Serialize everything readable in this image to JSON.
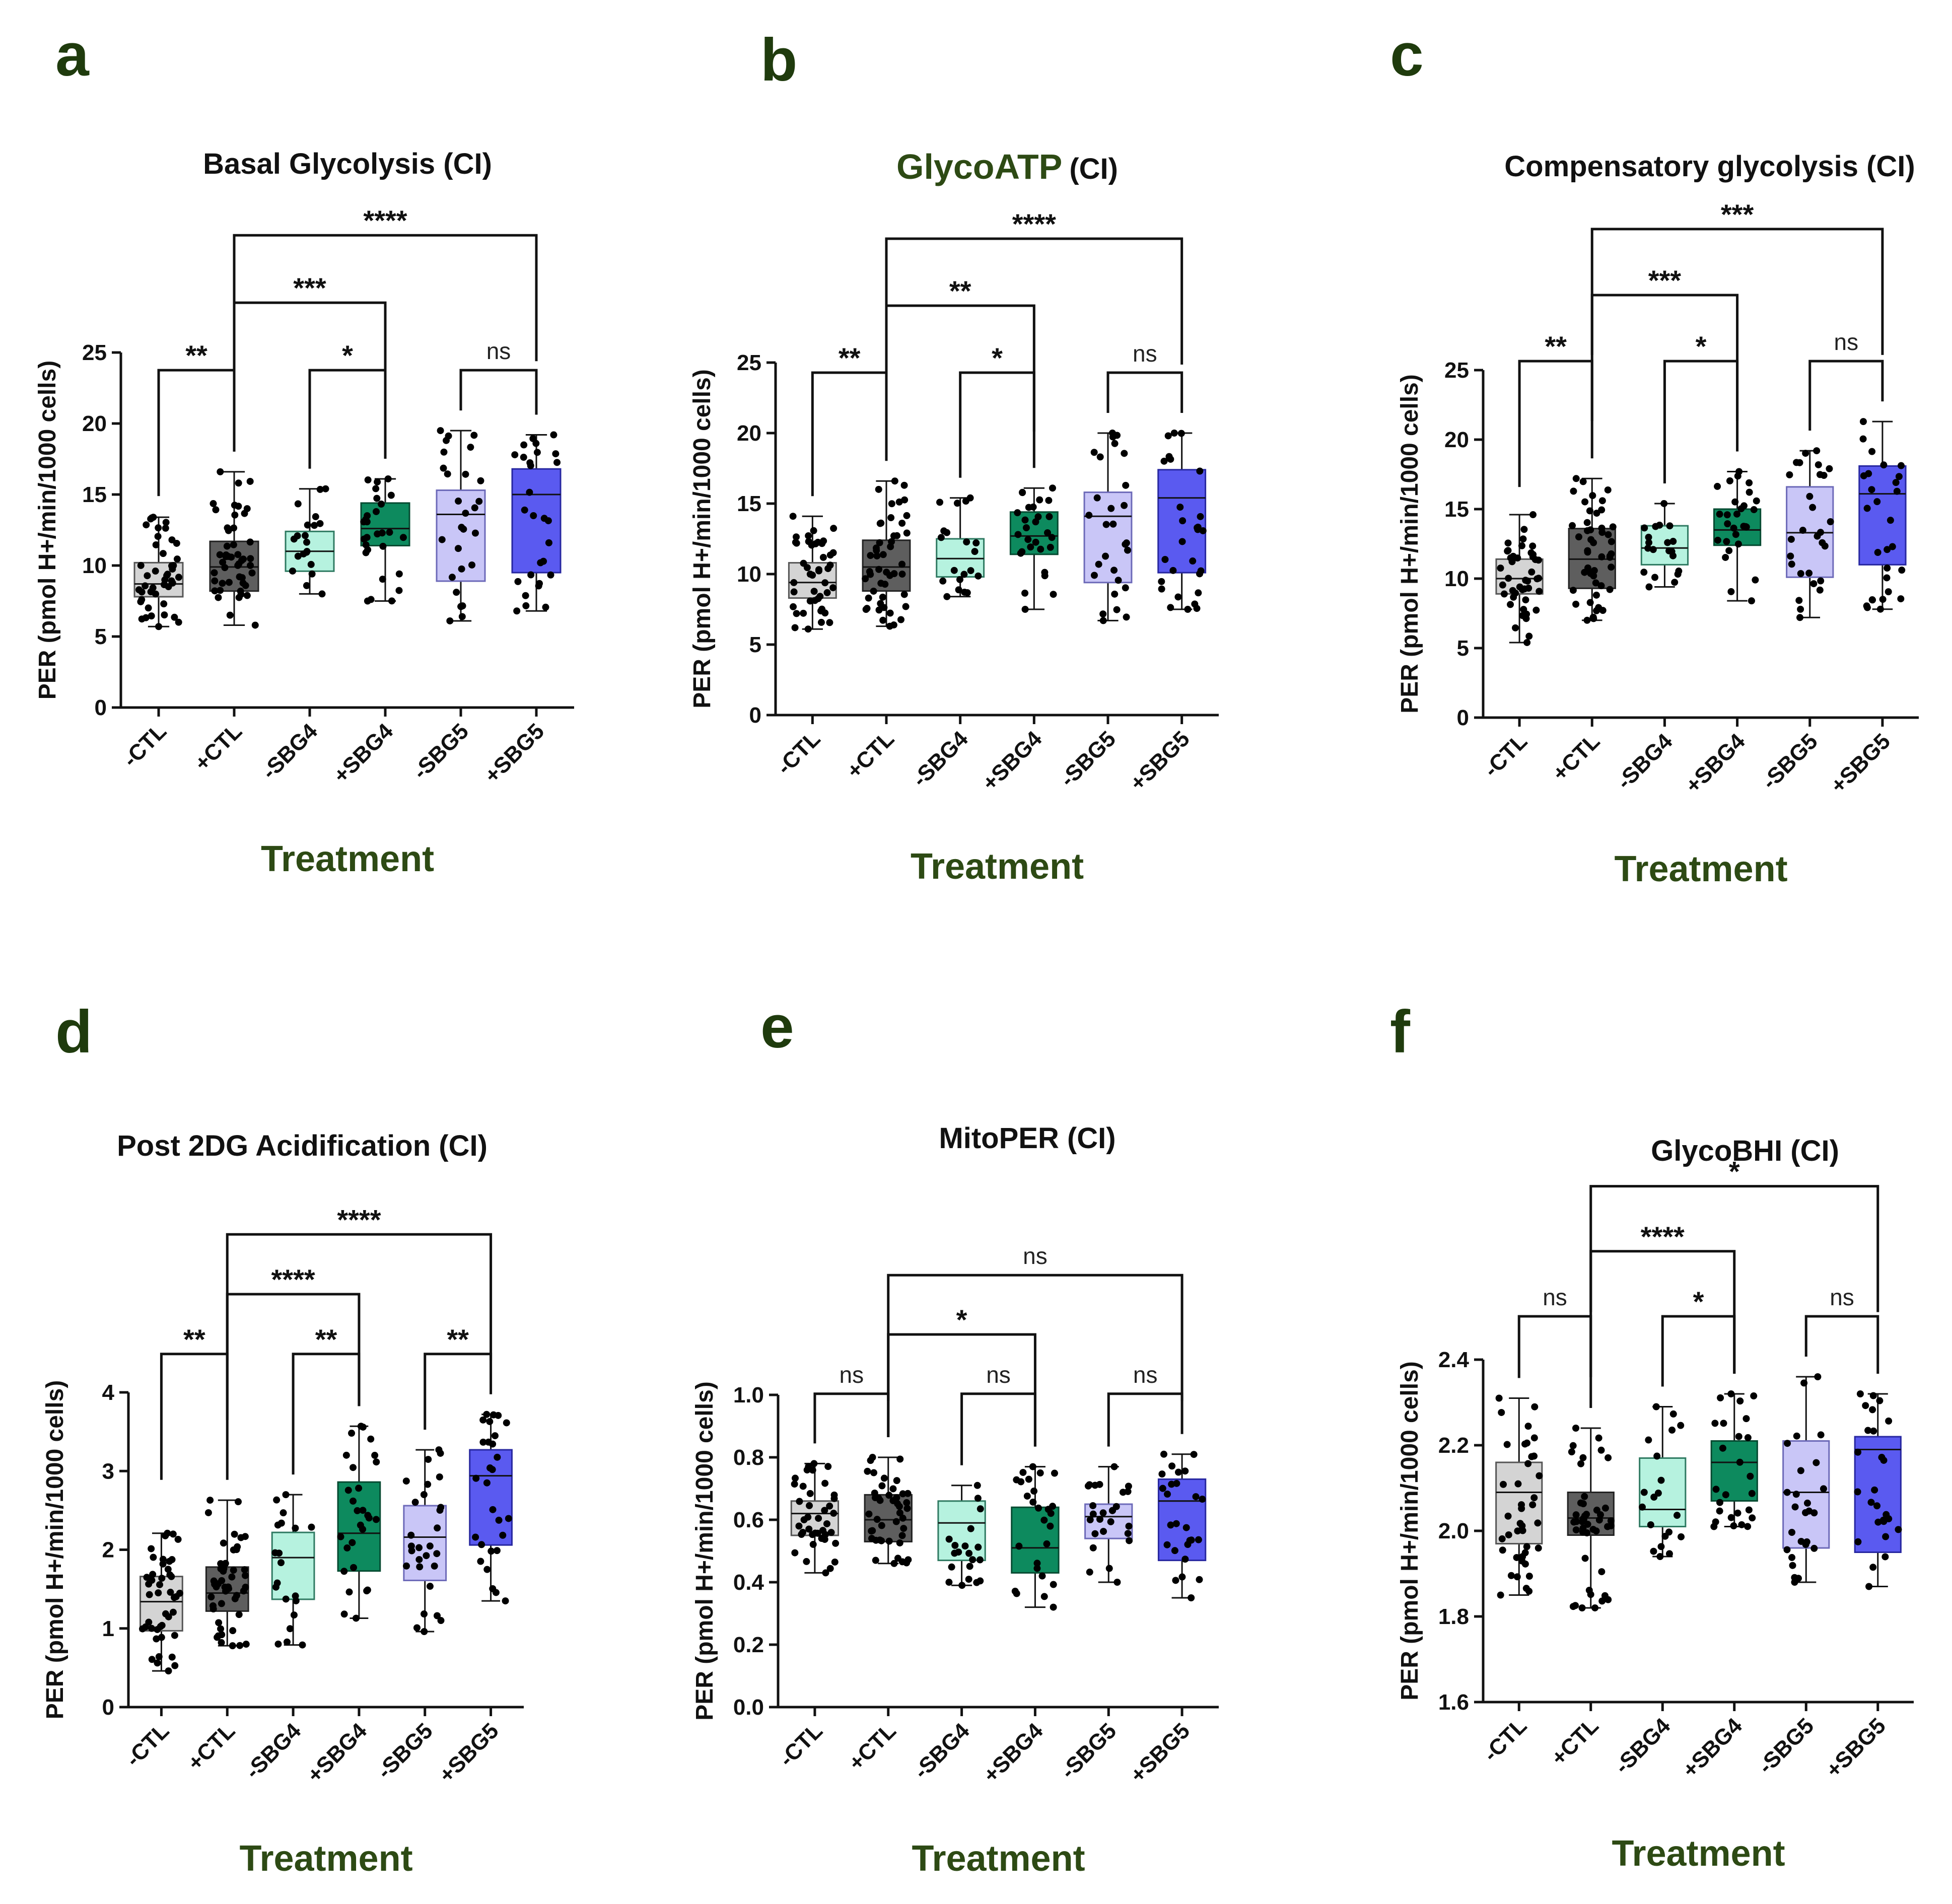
{
  "figure": {
    "x_title": "Treatment",
    "box_colors": [
      "#d4d4d4",
      "#5e5e5e",
      "#b6f2df",
      "#0d8a5e",
      "#c9c6f7",
      "#5a5af0"
    ]
  },
  "chart_data": [
    {
      "panel": "a",
      "type": "box",
      "title_main": "Basal Glycolysis (CI)",
      "title_accent": "",
      "ylabel": "PER (pmol H+/min/1000 cells)",
      "xlabel": "Treatment",
      "ylim": [
        0,
        25
      ],
      "yticks": [
        "0",
        "5",
        "10",
        "15",
        "20",
        "25"
      ],
      "tick_values": [
        0,
        5,
        10,
        15,
        20,
        25
      ],
      "categories": [
        "-CTL",
        "+CTL",
        "-SBG4",
        "+SBG4",
        "-SBG5",
        "+SBG5"
      ],
      "boxes": [
        {
          "min": 5.7,
          "q1": 7.8,
          "median": 8.7,
          "q3": 10.2,
          "max": 13.4,
          "n": 44
        },
        {
          "min": 5.8,
          "q1": 8.2,
          "median": 9.9,
          "q3": 11.7,
          "max": 16.6,
          "n": 48
        },
        {
          "min": 8.0,
          "q1": 9.6,
          "median": 11.0,
          "q3": 12.4,
          "max": 15.4,
          "n": 20
        },
        {
          "min": 7.5,
          "q1": 11.4,
          "median": 12.6,
          "q3": 14.4,
          "max": 16.1,
          "n": 28
        },
        {
          "min": 6.1,
          "q1": 8.9,
          "median": 13.6,
          "q3": 15.3,
          "max": 19.5,
          "n": 28
        },
        {
          "min": 6.8,
          "q1": 9.5,
          "median": 15.0,
          "q3": 16.8,
          "max": 19.2,
          "n": 28
        }
      ],
      "significance": [
        {
          "from": 0,
          "to": 1,
          "label": "**",
          "level": 1
        },
        {
          "from": 2,
          "to": 3,
          "label": "*",
          "level": 1
        },
        {
          "from": 4,
          "to": 5,
          "label": "ns",
          "level": 1
        },
        {
          "from": 1,
          "to": 3,
          "label": "***",
          "level": 2
        },
        {
          "from": 1,
          "to": 5,
          "label": "****",
          "level": 3
        }
      ]
    },
    {
      "panel": "b",
      "type": "box",
      "title_main": "(CI)",
      "title_accent": "GlycoATP",
      "ylabel": "PER (pmol H+/min/1000 cells)",
      "xlabel": "Treatment",
      "ylim": [
        0,
        25
      ],
      "yticks": [
        "0",
        "5",
        "10",
        "15",
        "20",
        "25"
      ],
      "tick_values": [
        0,
        5,
        10,
        15,
        20,
        25
      ],
      "categories": [
        "-CTL",
        "+CTL",
        "-SBG4",
        "+SBG4",
        "-SBG5",
        "+SBG5"
      ],
      "boxes": [
        {
          "min": 6.1,
          "q1": 8.3,
          "median": 9.4,
          "q3": 10.8,
          "max": 14.1,
          "n": 44
        },
        {
          "min": 6.3,
          "q1": 8.8,
          "median": 10.5,
          "q3": 12.4,
          "max": 16.6,
          "n": 48
        },
        {
          "min": 8.4,
          "q1": 9.8,
          "median": 11.1,
          "q3": 12.5,
          "max": 15.4,
          "n": 20
        },
        {
          "min": 7.5,
          "q1": 11.4,
          "median": 12.7,
          "q3": 14.4,
          "max": 16.1,
          "n": 28
        },
        {
          "min": 6.7,
          "q1": 9.4,
          "median": 14.1,
          "q3": 15.8,
          "max": 20.0,
          "n": 28
        },
        {
          "min": 7.5,
          "q1": 10.1,
          "median": 15.4,
          "q3": 17.4,
          "max": 20.0,
          "n": 28
        }
      ],
      "significance": [
        {
          "from": 0,
          "to": 1,
          "label": "**",
          "level": 1
        },
        {
          "from": 2,
          "to": 3,
          "label": "*",
          "level": 1
        },
        {
          "from": 4,
          "to": 5,
          "label": "ns",
          "level": 1
        },
        {
          "from": 1,
          "to": 3,
          "label": "**",
          "level": 2
        },
        {
          "from": 1,
          "to": 5,
          "label": "****",
          "level": 3
        }
      ]
    },
    {
      "panel": "c",
      "type": "box",
      "title_main": "Compensatory glycolysis (CI)",
      "title_accent": "",
      "ylabel": "PER (pmol H+/min/1000 cells)",
      "xlabel": "Treatment",
      "ylim": [
        0,
        25
      ],
      "yticks": [
        "0",
        "5",
        "10",
        "15",
        "20",
        "25"
      ],
      "tick_values": [
        0,
        5,
        10,
        15,
        20,
        25
      ],
      "categories": [
        "-CTL",
        "+CTL",
        "-SBG4",
        "+SBG4",
        "-SBG5",
        "+SBG5"
      ],
      "boxes": [
        {
          "min": 5.4,
          "q1": 8.9,
          "median": 10.0,
          "q3": 11.4,
          "max": 14.6,
          "n": 44
        },
        {
          "min": 7.0,
          "q1": 9.3,
          "median": 11.4,
          "q3": 13.6,
          "max": 17.2,
          "n": 48
        },
        {
          "min": 9.4,
          "q1": 11.0,
          "median": 12.2,
          "q3": 13.8,
          "max": 15.4,
          "n": 20
        },
        {
          "min": 8.4,
          "q1": 12.4,
          "median": 13.5,
          "q3": 15.0,
          "max": 17.7,
          "n": 28
        },
        {
          "min": 7.2,
          "q1": 10.1,
          "median": 13.3,
          "q3": 16.6,
          "max": 19.2,
          "n": 28
        },
        {
          "min": 7.8,
          "q1": 11.0,
          "median": 16.1,
          "q3": 18.1,
          "max": 21.3,
          "n": 28
        }
      ],
      "significance": [
        {
          "from": 0,
          "to": 1,
          "label": "**",
          "level": 1
        },
        {
          "from": 2,
          "to": 3,
          "label": "*",
          "level": 1
        },
        {
          "from": 4,
          "to": 5,
          "label": "ns",
          "level": 1
        },
        {
          "from": 1,
          "to": 3,
          "label": "***",
          "level": 2
        },
        {
          "from": 1,
          "to": 5,
          "label": "***",
          "level": 3
        }
      ]
    },
    {
      "panel": "d",
      "type": "box",
      "title_main": "Post 2DG Acidification (CI)",
      "title_accent": "",
      "ylabel": "PER (pmol H+/min/1000 cells)",
      "xlabel": "Treatment",
      "ylim": [
        0,
        4
      ],
      "yticks": [
        "0",
        "1",
        "2",
        "3",
        "4"
      ],
      "tick_values": [
        0,
        1,
        2,
        3,
        4
      ],
      "categories": [
        "-CTL",
        "+CTL",
        "-SBG4",
        "+SBG4",
        "-SBG5",
        "+SBG5"
      ],
      "boxes": [
        {
          "min": 0.46,
          "q1": 0.97,
          "median": 1.34,
          "q3": 1.66,
          "max": 2.21,
          "n": 44
        },
        {
          "min": 0.78,
          "q1": 1.22,
          "median": 1.45,
          "q3": 1.78,
          "max": 2.63,
          "n": 48
        },
        {
          "min": 0.79,
          "q1": 1.37,
          "median": 1.9,
          "q3": 2.22,
          "max": 2.7,
          "n": 20
        },
        {
          "min": 1.13,
          "q1": 1.73,
          "median": 2.21,
          "q3": 2.86,
          "max": 3.57,
          "n": 28
        },
        {
          "min": 0.96,
          "q1": 1.61,
          "median": 2.16,
          "q3": 2.56,
          "max": 3.27,
          "n": 28
        },
        {
          "min": 1.35,
          "q1": 2.06,
          "median": 2.94,
          "q3": 3.27,
          "max": 3.72,
          "n": 28
        }
      ],
      "significance": [
        {
          "from": 0,
          "to": 1,
          "label": "**",
          "level": 1
        },
        {
          "from": 2,
          "to": 3,
          "label": "**",
          "level": 1
        },
        {
          "from": 4,
          "to": 5,
          "label": "**",
          "level": 1
        },
        {
          "from": 1,
          "to": 3,
          "label": "****",
          "level": 2
        },
        {
          "from": 1,
          "to": 5,
          "label": "****",
          "level": 3
        }
      ]
    },
    {
      "panel": "e",
      "type": "box",
      "title_main": "MitoPER (CI)",
      "title_accent": "",
      "ylabel": "PER (pmol H+/min/1000 cells)",
      "xlabel": "Treatment",
      "ylim": [
        0,
        1
      ],
      "yticks": [
        "0.0",
        "0.2",
        "0.4",
        "0.6",
        "0.8",
        "1.0"
      ],
      "tick_values": [
        0,
        0.2,
        0.4,
        0.6,
        0.8,
        1.0
      ],
      "categories": [
        "-CTL",
        "+CTL",
        "-SBG4",
        "+SBG4",
        "-SBG5",
        "+SBG5"
      ],
      "boxes": [
        {
          "min": 0.43,
          "q1": 0.55,
          "median": 0.62,
          "q3": 0.66,
          "max": 0.78,
          "n": 40
        },
        {
          "min": 0.46,
          "q1": 0.53,
          "median": 0.6,
          "q3": 0.68,
          "max": 0.8,
          "n": 44
        },
        {
          "min": 0.39,
          "q1": 0.47,
          "median": 0.59,
          "q3": 0.66,
          "max": 0.71,
          "n": 20
        },
        {
          "min": 0.32,
          "q1": 0.43,
          "median": 0.51,
          "q3": 0.64,
          "max": 0.77,
          "n": 26
        },
        {
          "min": 0.4,
          "q1": 0.54,
          "median": 0.61,
          "q3": 0.65,
          "max": 0.77,
          "n": 26
        },
        {
          "min": 0.35,
          "q1": 0.47,
          "median": 0.66,
          "q3": 0.73,
          "max": 0.81,
          "n": 26
        }
      ],
      "significance": [
        {
          "from": 0,
          "to": 1,
          "label": "ns",
          "level": 1
        },
        {
          "from": 2,
          "to": 3,
          "label": "ns",
          "level": 1
        },
        {
          "from": 4,
          "to": 5,
          "label": "ns",
          "level": 1
        },
        {
          "from": 1,
          "to": 3,
          "label": "*",
          "level": 2
        },
        {
          "from": 1,
          "to": 5,
          "label": "ns",
          "level": 3
        }
      ]
    },
    {
      "panel": "f",
      "type": "box",
      "title_main": "GlycoBHI (CI)",
      "title_accent": "",
      "ylabel": "PER (pmol H+/min/1000 cells)",
      "xlabel": "Treatment",
      "ylim": [
        1.6,
        2.4
      ],
      "yticks": [
        "1.6",
        "1.8",
        "2.0",
        "2.2",
        "2.4"
      ],
      "tick_values": [
        1.6,
        1.8,
        2.0,
        2.2,
        2.4
      ],
      "categories": [
        "-CTL",
        "+CTL",
        "-SBG4",
        "+SBG4",
        "-SBG5",
        "+SBG5"
      ],
      "boxes": [
        {
          "min": 1.85,
          "q1": 1.97,
          "median": 2.09,
          "q3": 2.16,
          "max": 2.31,
          "n": 40
        },
        {
          "min": 1.82,
          "q1": 1.99,
          "median": 2.03,
          "q3": 2.09,
          "max": 2.24,
          "n": 44
        },
        {
          "min": 1.94,
          "q1": 2.01,
          "median": 2.05,
          "q3": 2.17,
          "max": 2.29,
          "n": 20
        },
        {
          "min": 2.01,
          "q1": 2.07,
          "median": 2.16,
          "q3": 2.21,
          "max": 2.32,
          "n": 26
        },
        {
          "min": 1.88,
          "q1": 1.96,
          "median": 2.09,
          "q3": 2.21,
          "max": 2.36,
          "n": 26
        },
        {
          "min": 1.87,
          "q1": 1.95,
          "median": 2.19,
          "q3": 2.22,
          "max": 2.32,
          "n": 26
        }
      ],
      "significance": [
        {
          "from": 0,
          "to": 1,
          "label": "ns",
          "level": 1
        },
        {
          "from": 2,
          "to": 3,
          "label": "*",
          "level": 1
        },
        {
          "from": 4,
          "to": 5,
          "label": "ns",
          "level": 1
        },
        {
          "from": 1,
          "to": 3,
          "label": "****",
          "level": 2
        },
        {
          "from": 1,
          "to": 5,
          "label": "*",
          "level": 3
        }
      ]
    }
  ]
}
